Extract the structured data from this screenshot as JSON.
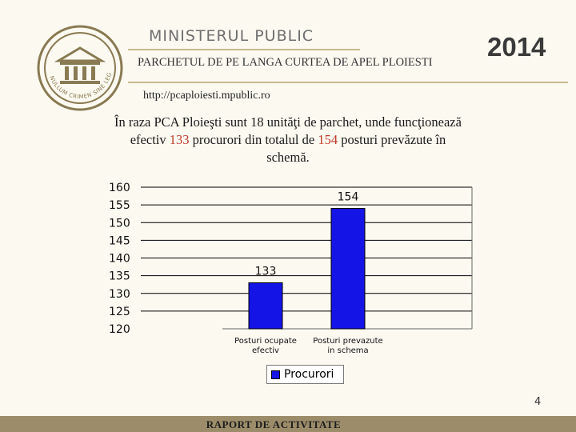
{
  "header": {
    "ministry": "MINISTERUL PUBLIC",
    "institution": "PARCHETUL DE PE LANGA CURTEA DE APEL PLOIESTI",
    "year": "2014",
    "website": "http://pcaploiesti.mpublic.ro",
    "logo_motto": "NULLUM CRIMEN SINE LEGE"
  },
  "statement": {
    "part1": "În  raza PCA Ploieşti sunt 18 unităţi de parchet, unde funcţionează efectiv ",
    "value1": "133",
    "part2": " procurori din totalul de ",
    "value2": "154",
    "part3": " posturi prevăzute în schemă."
  },
  "chart_data": {
    "type": "bar",
    "categories": [
      [
        "Posturi ocupate",
        "efectiv"
      ],
      [
        "Posturi prevazute",
        "in schema"
      ]
    ],
    "series": [
      {
        "name": "Procurori",
        "values": [
          133,
          154
        ],
        "color": "#1414e6"
      }
    ],
    "ylim": [
      120,
      160
    ],
    "yticks": [
      120,
      125,
      130,
      135,
      140,
      145,
      150,
      155,
      160
    ],
    "grid": true,
    "legend": "bottom",
    "data_labels": [
      "133",
      "154"
    ]
  },
  "page_number": "4",
  "footer": {
    "text": "RAPORT DE ACTIVITATE"
  }
}
